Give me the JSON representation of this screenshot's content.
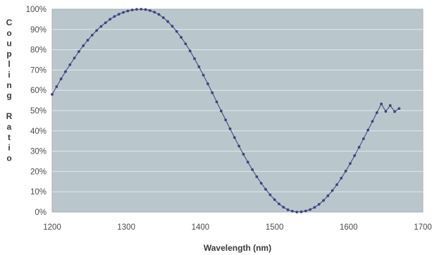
{
  "chart_data": {
    "type": "line",
    "xlabel": "Wavelength (nm)",
    "ylabel": "Coupling Ratio",
    "xlim": [
      1200,
      1700
    ],
    "ylim": [
      0,
      100
    ],
    "x_ticks": [
      "1200",
      "1300",
      "1400",
      "1500",
      "1600",
      "1700"
    ],
    "y_ticks": [
      "0%",
      "10%",
      "20%",
      "30%",
      "40%",
      "50%",
      "60%",
      "70%",
      "80%",
      "90%",
      "100%"
    ],
    "grid": "horizontal",
    "marker": "dot",
    "series": [
      {
        "x": [
          1200,
          1206,
          1212,
          1218,
          1224,
          1230,
          1236,
          1242,
          1248,
          1254,
          1260,
          1266,
          1272,
          1278,
          1284,
          1290,
          1296,
          1302,
          1308,
          1314,
          1320,
          1326,
          1332,
          1338,
          1344,
          1350,
          1356,
          1362,
          1368,
          1374,
          1380,
          1386,
          1392,
          1398,
          1404,
          1410,
          1416,
          1422,
          1428,
          1434,
          1440,
          1446,
          1452,
          1458,
          1464,
          1470,
          1476,
          1482,
          1488,
          1494,
          1500,
          1506,
          1512,
          1518,
          1524,
          1530,
          1536,
          1542,
          1548,
          1554,
          1560,
          1566,
          1572,
          1578,
          1584,
          1590,
          1596,
          1602,
          1608,
          1614,
          1620,
          1626,
          1632,
          1638,
          1644,
          1650,
          1656,
          1662,
          1668
        ],
        "values": [
          58.0,
          61.8,
          65.6,
          69.2,
          72.6,
          75.9,
          79.1,
          82.0,
          84.7,
          87.2,
          89.5,
          91.5,
          93.3,
          95.0,
          96.4,
          97.5,
          98.4,
          99.1,
          99.6,
          99.9,
          100.0,
          99.8,
          99.3,
          98.5,
          97.4,
          95.8,
          93.9,
          91.6,
          89.0,
          86.1,
          82.9,
          79.4,
          75.6,
          71.6,
          67.5,
          63.2,
          58.8,
          54.3,
          49.8,
          45.4,
          41.0,
          36.7,
          32.5,
          28.5,
          24.6,
          20.9,
          17.4,
          14.2,
          11.2,
          8.5,
          6.1,
          4.0,
          2.4,
          1.1,
          0.4,
          0.0,
          0.1,
          0.5,
          1.2,
          2.3,
          3.8,
          5.7,
          8.0,
          10.6,
          13.5,
          16.7,
          20.2,
          23.9,
          27.8,
          31.9,
          36.1,
          40.4,
          44.7,
          49.0,
          53.3,
          49.6,
          52.5,
          49.5,
          51.0
        ]
      }
    ]
  },
  "colors": {
    "plot_bg": "#b9c6cc",
    "grid": "#e3e9ec",
    "series_line": "#4a5a7a",
    "marker": "#3e3f8a",
    "frame": "#a9b2b7"
  }
}
